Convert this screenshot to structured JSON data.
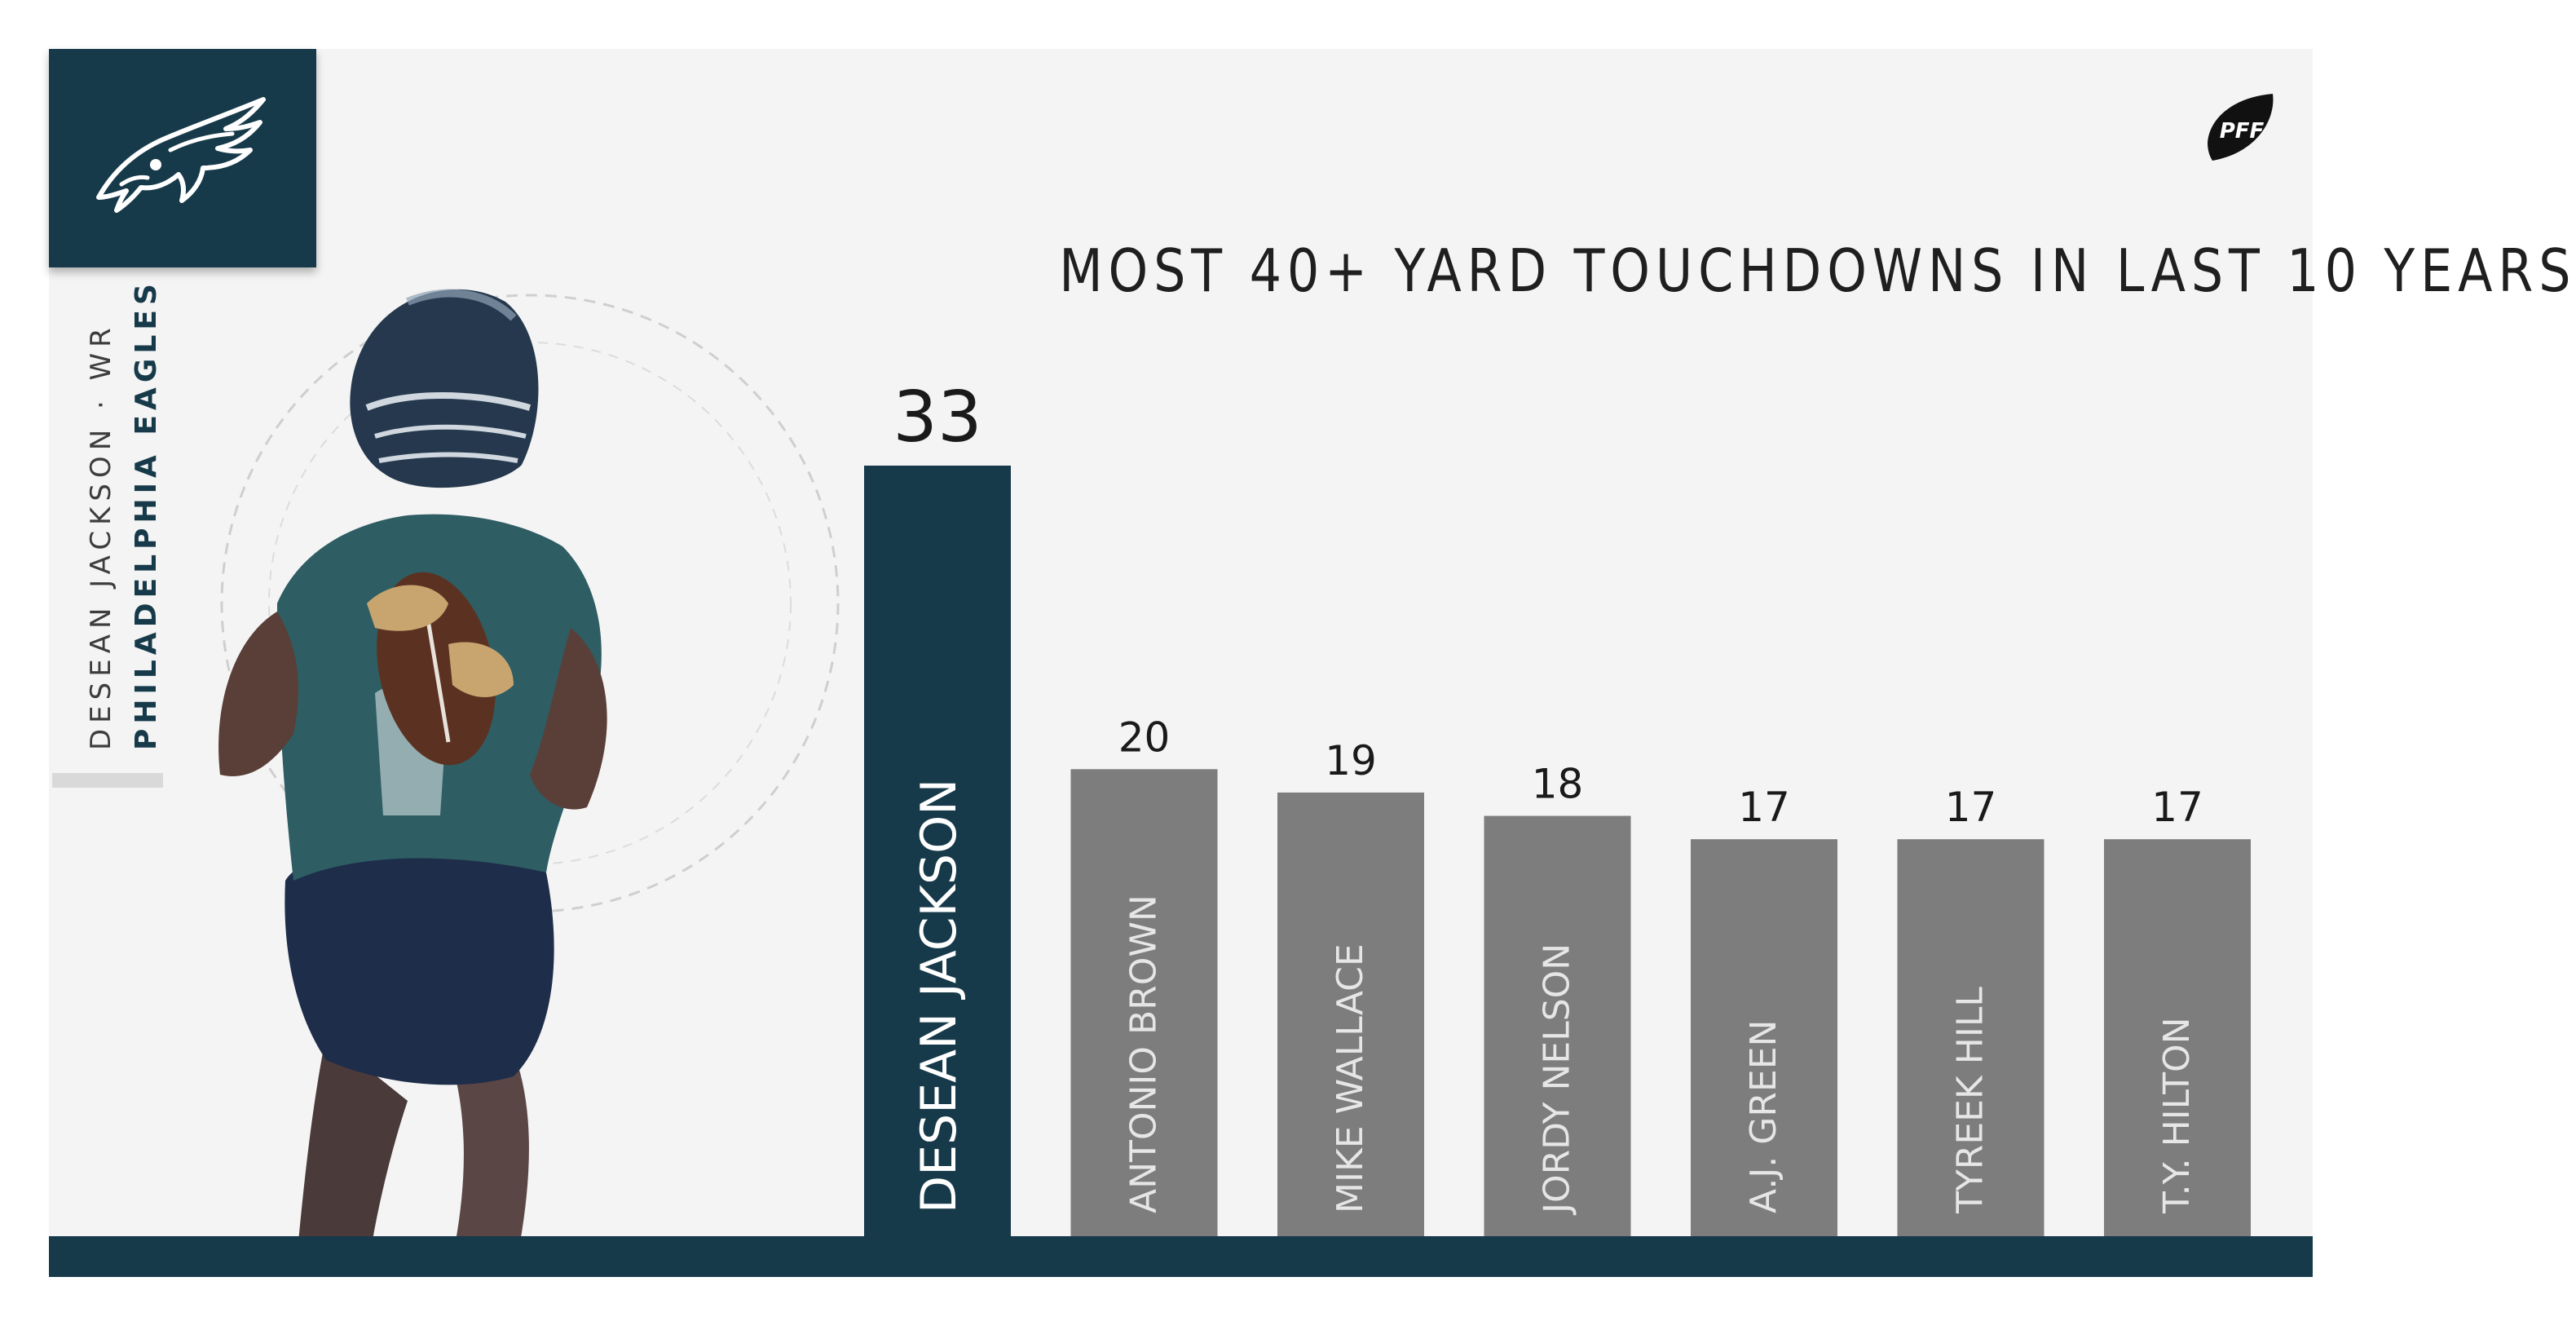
{
  "team": {
    "logo_icon": "eagle-head-icon",
    "color": "#173a4a"
  },
  "player": {
    "name_line": "DESEAN JACKSON · WR",
    "team_line": "PHILADELPHIA EAGLES"
  },
  "brand": {
    "logo_text": "PFF",
    "logo_icon": "pff-football-icon"
  },
  "colors": {
    "highlight": "#173a4a",
    "bar": "#7d7d7d",
    "background": "#f4f4f4"
  },
  "chart_data": {
    "type": "bar",
    "title": "MOST 40+ YARD TOUCHDOWNS IN LAST 10 YEARS",
    "xlabel": "",
    "ylabel": "",
    "ylim": [
      0,
      33
    ],
    "grid": false,
    "legend": "none",
    "categories": [
      "DESEAN JACKSON",
      "ANTONIO BROWN",
      "MIKE WALLACE",
      "JORDY NELSON",
      "A.J. GREEN",
      "TYREEK HILL",
      "T.Y. HILTON"
    ],
    "values": [
      33,
      20,
      19,
      18,
      17,
      17,
      17
    ],
    "highlight_index": 0
  }
}
